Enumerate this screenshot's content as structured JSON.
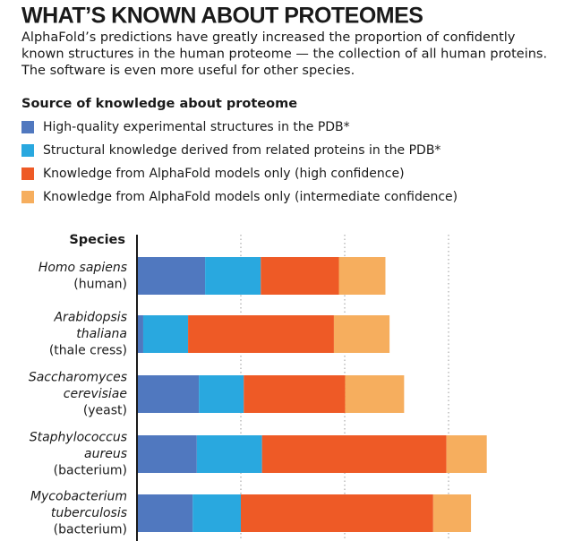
{
  "chart_data": {
    "type": "stacked-barh",
    "title": "WHAT’S KNOWN ABOUT PROTEOMES",
    "subtitle": [
      "AlphaFold’s predictions have greatly increased the proportion of confidently",
      "known structures in the human proteome — the collection of all human proteins.",
      "The software is even more useful for other species."
    ],
    "legend_title": "Source of knowledge about proteome",
    "axis_label": "Species",
    "categories": [
      [
        "Homo sapiens",
        "(human)"
      ],
      [
        "Arabidopsis",
        "thaliana",
        "(thale cress)"
      ],
      [
        "Saccharomyces",
        "cerevisiae",
        "(yeast)"
      ],
      [
        "Staphylococcus",
        "aureus",
        "(bacterium)"
      ],
      [
        "Mycobacterium",
        "tuberculosis",
        "(bacterium)"
      ]
    ],
    "series": [
      {
        "name": "High-quality experimental structures in the PDB*",
        "color": "#5078bf",
        "values": [
          16.4,
          1.5,
          14.9,
          14.4,
          13.4
        ]
      },
      {
        "name": "Structural knowledge derived from related proteins in the PDB*",
        "color": "#29a8df",
        "values": [
          13.4,
          10.8,
          10.8,
          15.7,
          11.6
        ]
      },
      {
        "name": "Knowledge from AlphaFold models only (high confidence)",
        "color": "#ee5a26",
        "values": [
          18.8,
          35.1,
          24.4,
          44.4,
          46.3
        ]
      },
      {
        "name": "Knowledge from AlphaFold models only (intermediate confidence)",
        "color": "#f6ae5e",
        "values": [
          11.2,
          13.4,
          14.2,
          9.7,
          9.1
        ]
      }
    ],
    "xlim": [
      0,
      100
    ],
    "xticks": [
      25,
      50,
      75
    ],
    "grid": true
  }
}
